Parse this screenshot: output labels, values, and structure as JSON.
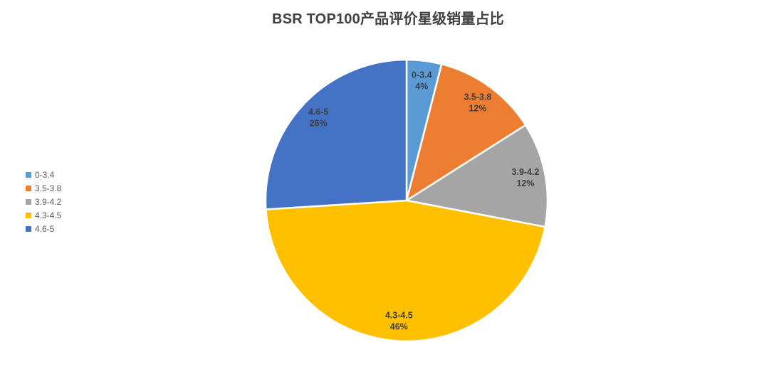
{
  "page": {
    "background": "#ffffff"
  },
  "chart_data": {
    "type": "pie",
    "title": "BSR TOP100产品评价星级销量占比",
    "categories": [
      "0-3.4",
      "3.5-3.8",
      "3.9-4.2",
      "4.3-4.5",
      "4.6-5"
    ],
    "values": [
      4,
      12,
      12,
      46,
      26
    ],
    "unit": "%",
    "data_labels": [
      "0-3.4 4%",
      "3.5-3.8 12%",
      "3.9-4.2 12%",
      "4.3-4.5 46%",
      "4.6-5 26%"
    ],
    "colors": [
      "#5B9BD5",
      "#ED7D31",
      "#A5A5A5",
      "#FFC000",
      "#4472C4"
    ],
    "start_angle_deg": 0,
    "direction": "clockwise",
    "legend_position": "left",
    "label_position": "inside-end",
    "text_colors": {
      "title": "#404040",
      "data_label": "#3f3f3f",
      "legend": "#595959"
    }
  }
}
